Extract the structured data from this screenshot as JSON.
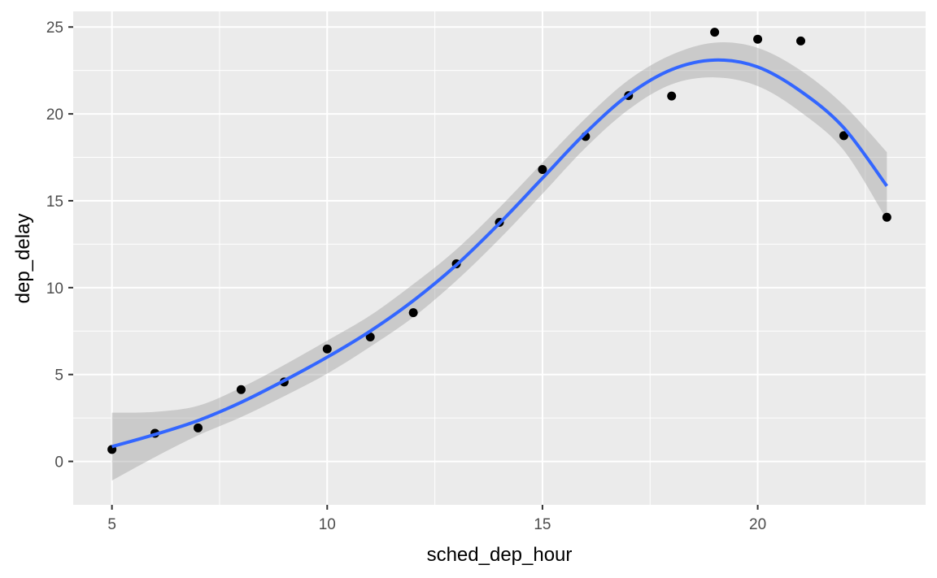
{
  "chart_data": {
    "type": "scatter",
    "xlabel": "sched_dep_hour",
    "ylabel": "dep_delay",
    "xlim": [
      4.1,
      23.9
    ],
    "ylim": [
      -2.5,
      25.9
    ],
    "x_ticks": [
      5,
      10,
      15,
      20
    ],
    "x_minor_ticks": [
      7.5,
      12.5,
      17.5,
      22.5
    ],
    "y_ticks": [
      0,
      5,
      10,
      15,
      20,
      25
    ],
    "y_minor_ticks": [
      2.5,
      7.5,
      12.5,
      17.5,
      22.5
    ],
    "grid": true,
    "legend": "none",
    "points": {
      "x": [
        5,
        6,
        7,
        8,
        9,
        10,
        11,
        12,
        13,
        14,
        15,
        16,
        17,
        18,
        19,
        20,
        21,
        22,
        23
      ],
      "y": [
        0.69,
        1.62,
        1.93,
        4.13,
        4.57,
        6.47,
        7.16,
        8.56,
        11.37,
        13.76,
        16.8,
        18.7,
        21.05,
        21.03,
        24.7,
        24.3,
        24.2,
        18.75,
        14.05
      ],
      "color": "#000000"
    },
    "smooth": {
      "method": "loess",
      "color": "#3366ff",
      "ribbon_color": "#999999",
      "x": [
        5,
        6,
        7,
        8,
        9,
        10,
        11,
        12,
        13,
        14,
        15,
        16,
        17,
        18,
        19,
        20,
        21,
        22,
        23
      ],
      "y": [
        0.85,
        1.55,
        2.35,
        3.4,
        4.65,
        6.0,
        7.5,
        9.25,
        11.3,
        13.7,
        16.3,
        18.9,
        21.1,
        22.55,
        23.1,
        22.7,
        21.3,
        19.2,
        15.85
      ],
      "ymin": [
        -1.1,
        0.25,
        1.5,
        2.55,
        3.75,
        5.05,
        6.6,
        8.3,
        10.4,
        12.8,
        15.4,
        18.05,
        20.25,
        21.7,
        22.1,
        21.6,
        20.1,
        17.9,
        13.9
      ],
      "ymax": [
        2.8,
        2.85,
        3.2,
        4.25,
        5.55,
        6.95,
        8.4,
        10.2,
        12.2,
        14.6,
        17.2,
        19.75,
        21.95,
        23.4,
        24.1,
        23.8,
        22.5,
        20.5,
        17.8
      ]
    },
    "colors": {
      "panel": "#ebebeb",
      "grid": "#ffffff",
      "tick_label": "#4d4d4d",
      "axis_tick": "#333333"
    }
  }
}
